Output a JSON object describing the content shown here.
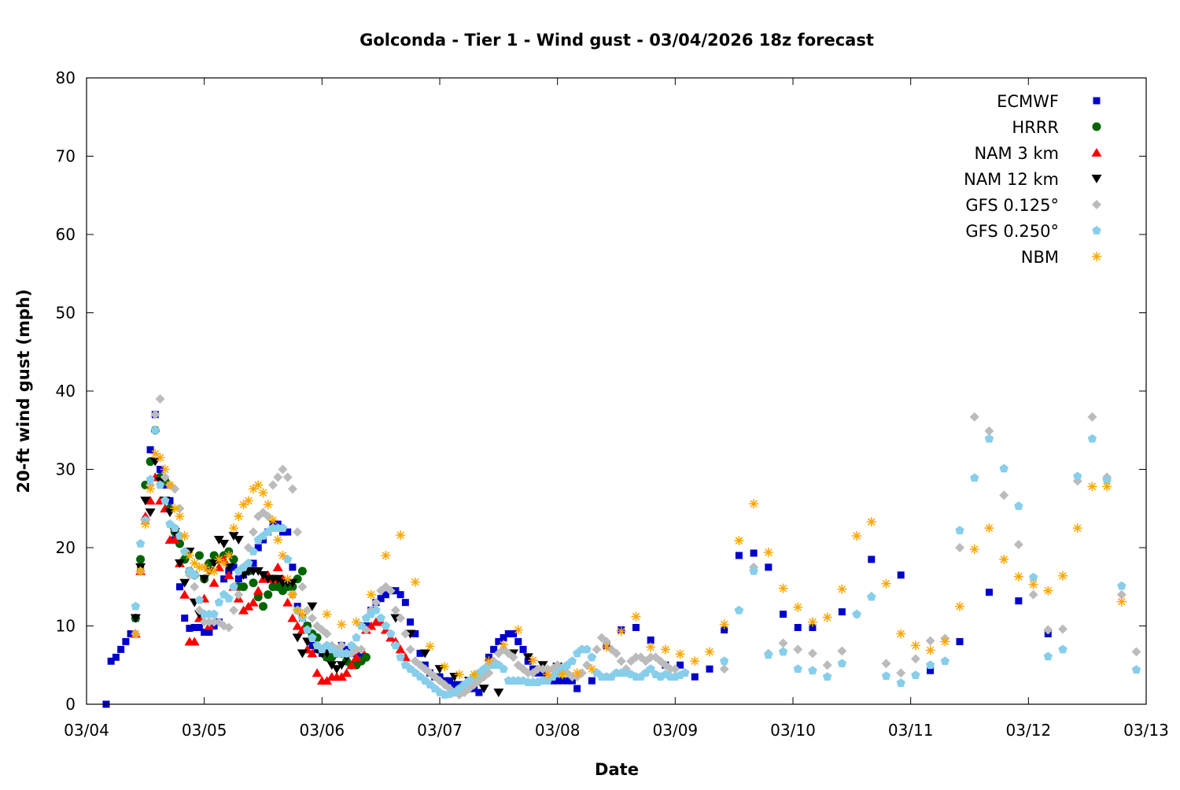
{
  "chart_data": {
    "type": "scatter",
    "title": "Golconda - Tier 1 - Wind gust - 03/04/2026 18z forecast",
    "xlabel": "Date",
    "ylabel": "20-ft wind gust (mph)",
    "x_units": "hours since 03/04 00z",
    "xlim": [
      0,
      216
    ],
    "ylim": [
      0,
      80
    ],
    "yticks": [
      0,
      10,
      20,
      30,
      40,
      50,
      60,
      70,
      80
    ],
    "xticks": [
      {
        "hour": 0,
        "label": "03/04"
      },
      {
        "hour": 24,
        "label": "03/05"
      },
      {
        "hour": 48,
        "label": "03/06"
      },
      {
        "hour": 72,
        "label": "03/07"
      },
      {
        "hour": 96,
        "label": "03/08"
      },
      {
        "hour": 120,
        "label": "03/09"
      },
      {
        "hour": 144,
        "label": "03/10"
      },
      {
        "hour": 168,
        "label": "03/11"
      },
      {
        "hour": 192,
        "label": "03/12"
      },
      {
        "hour": 216,
        "label": "03/13"
      }
    ],
    "grid": false,
    "legend_position": "top-right",
    "series": [
      {
        "name": "ECMWF",
        "marker": "square",
        "color": "#0000cc",
        "segments": [
          {
            "start": 4,
            "step": 1,
            "values": [
              0,
              5.5,
              6,
              7,
              8,
              9,
              11,
              17.5,
              23.5,
              32.5,
              37,
              30,
              28,
              26,
              21,
              15,
              11,
              9.7,
              9.8,
              9.8,
              9.2,
              9.2,
              10,
              10.5,
              16,
              17,
              17.5,
              16,
              16.5,
              17,
              18,
              20,
              21,
              22,
              23,
              23,
              22,
              22,
              17.5,
              12.5,
              11,
              10,
              7.5,
              7,
              6.5,
              6,
              6.5,
              7,
              7.5,
              7,
              6.5,
              6.5,
              6.5,
              10,
              12,
              13,
              13.5,
              14,
              14.5,
              14.5,
              14,
              13,
              10.5,
              9,
              6.5,
              5,
              4,
              3.5,
              3.5,
              3,
              3,
              2.5,
              2.5,
              2,
              2,
              2,
              1.5,
              4,
              6,
              7,
              8,
              8.5,
              9,
              9,
              8,
              7,
              5.5,
              4.5,
              4,
              4,
              3,
              3,
              3,
              3,
              3,
              3
            ]
          },
          {
            "start": 100,
            "step": 3,
            "values": [
              2,
              3,
              7.5,
              9.5,
              9.8,
              8.2,
              5,
              5,
              3.5,
              4.5,
              9.5,
              19,
              19.3,
              17.5,
              11.5,
              9.8,
              9.8
            ]
          },
          {
            "start": 154,
            "step": 6,
            "values": [
              11.8,
              18.5,
              16.5,
              4.3,
              8,
              14.3,
              13.2,
              9
            ]
          }
        ]
      },
      {
        "name": "HRRR",
        "marker": "circle",
        "color": "#006400",
        "segments": [
          {
            "start": 10,
            "step": 1,
            "values": [
              11,
              18.5,
              28,
              31,
              35,
              29,
              28.5,
              25,
              22,
              20.5,
              18.5,
              17,
              16.5,
              19,
              16,
              18,
              19,
              18.5,
              19,
              19.5,
              18.5,
              15,
              15,
              17,
              15.5,
              13.7,
              12.5,
              14,
              15,
              15,
              14.5,
              15,
              15,
              16,
              17,
              10,
              9,
              8.5,
              7,
              6,
              6,
              6.5,
              6.5,
              5.5,
              5,
              5,
              5.5,
              6
            ]
          }
        ]
      },
      {
        "name": "NAM 3 km",
        "marker": "triangle-up",
        "color": "#ff0000",
        "segments": [
          {
            "start": 10,
            "step": 1,
            "values": [
              9,
              17,
              24,
              26,
              29,
              26,
              25,
              21,
              21,
              18,
              14,
              8,
              8,
              11,
              13.5,
              10,
              15.5,
              17.5,
              18.5,
              16.5,
              15,
              13.5,
              12,
              12.5,
              13,
              14.5,
              16,
              16.5,
              16,
              17.5,
              16,
              13,
              11,
              10,
              9.5,
              7,
              6.5,
              4,
              3,
              3,
              3.5,
              3.5,
              3.5,
              4,
              5,
              6,
              7,
              9.5,
              10,
              10.5,
              10.5,
              9.5,
              8.5,
              8,
              7,
              6
            ]
          }
        ]
      },
      {
        "name": "NAM 12 km",
        "marker": "triangle-down",
        "color": "#000000",
        "segments": [
          {
            "start": 10,
            "step": 1,
            "values": [
              11,
              17.5,
              26,
              24.5,
              31,
              28.5,
              26,
              24.5,
              22,
              18,
              15.5,
              19.5,
              13,
              11.5,
              16,
              17,
              18,
              21,
              20.5,
              17.5,
              21.5,
              21,
              16.5,
              17,
              17,
              17,
              16.5,
              16,
              16,
              16,
              15.5,
              15.5,
              15.5,
              8.5,
              6.5,
              8,
              12.5,
              7,
              6.5,
              6.5,
              5,
              4.5,
              5,
              6
            ]
          },
          {
            "start": 63,
            "step": 3,
            "values": [
              11,
              9,
              6.5,
              4.5,
              3.5,
              3,
              2,
              1.5,
              6.5,
              6,
              5,
              4.8
            ]
          }
        ]
      },
      {
        "name": "GFS 0.125°",
        "marker": "diamond",
        "color": "#bbbbbb",
        "segments": [
          {
            "start": 10,
            "step": 1,
            "values": [
              9,
              17,
              23.5,
              28,
              37,
              39,
              29,
              28,
              27.5,
              25,
              19.5,
              16.5,
              15,
              12,
              10.5,
              10.5,
              10.5,
              10.5,
              10,
              9.8,
              12,
              14,
              17.5,
              20,
              22,
              24,
              24.5,
              24,
              28,
              29,
              30,
              29,
              27.5,
              22,
              15,
              12,
              11,
              10,
              9.5,
              9,
              7.5,
              7,
              7.5,
              6.5,
              6.5,
              7,
              7,
              9.5,
              12,
              13,
              14.5,
              15,
              14.5,
              12,
              11,
              9,
              7,
              5.5,
              5,
              4.5,
              4,
              3.5,
              3,
              2.5,
              2,
              1.5,
              1.2,
              1.5,
              2,
              2.5,
              3,
              3.5,
              4,
              5.5,
              6.5,
              7,
              6.5,
              6,
              5,
              4.5,
              4,
              4,
              4.5,
              4.5,
              4.5,
              4.5,
              5,
              4.5,
              4,
              3.5,
              3.5,
              4,
              5,
              6,
              7,
              8.5,
              8,
              7,
              6.5,
              5.5,
              4.5,
              5.5,
              6,
              6,
              5.5,
              6,
              6,
              5.5,
              5,
              4.5,
              4.5
            ]
          },
          {
            "start": 130,
            "step": 3,
            "values": [
              4.5,
              12,
              17.5,
              6.5,
              7.8,
              7,
              6.5,
              5,
              6.8,
              11.5,
              13.8,
              5.2,
              4,
              5.8,
              8.1,
              8.4,
              20,
              36.7,
              34.9,
              26.7,
              20.4,
              14,
              9.5,
              9.6,
              28.5,
              36.7,
              29,
              14,
              6.7
            ]
          }
        ]
      },
      {
        "name": "GFS 0.250°",
        "marker": "pentagon",
        "color": "#87ceeb",
        "segments": [
          {
            "start": 10,
            "step": 1,
            "values": [
              12.5,
              20.5,
              23.5,
              28.7,
              35,
              28,
              26,
              23,
              22.5,
              21.5,
              19.5,
              17,
              16.5,
              13.3,
              11.5,
              11.5,
              11.5,
              13,
              14,
              13.5,
              15,
              17,
              17.5,
              18,
              19.5,
              21,
              21.5,
              22,
              22.5,
              22.5,
              22.5,
              18.5,
              14,
              12,
              11,
              9.5,
              8.5,
              7.5,
              7,
              7.5,
              7,
              6.5,
              6.5,
              6.5,
              7.5,
              8.5,
              10,
              11,
              11.5,
              12,
              11,
              10,
              9,
              7.5,
              6,
              5,
              4.5,
              4,
              3.5,
              3,
              2.5,
              2,
              1.5,
              1.2,
              1.3,
              1.5,
              2,
              2.5,
              3,
              3.5,
              4,
              4.5,
              5,
              5,
              5,
              4.5,
              3,
              3,
              3,
              3,
              2.8,
              2.8,
              2.8,
              3,
              3,
              3.5,
              4,
              4.5,
              5,
              5.5,
              6.5,
              7,
              7,
              6,
              4,
              3.5,
              3.5,
              3.5,
              4,
              4,
              4,
              3.8,
              3.5,
              3.5,
              4,
              4.5,
              3.8,
              3.5,
              3.8,
              3.5,
              3.5,
              3.7,
              4
            ]
          },
          {
            "start": 130,
            "step": 3,
            "values": [
              5.5,
              12,
              17,
              6.3,
              6.7,
              4.5,
              4.3,
              3.5,
              5.2,
              11.5,
              13.7,
              3.6,
              2.7,
              3.7,
              5,
              5.5,
              22.2,
              28.9,
              33.9,
              30.1,
              25.3,
              16.2,
              6.1,
              7,
              29.1,
              33.9,
              28.6,
              15.1,
              4.4
            ]
          }
        ]
      },
      {
        "name": "NBM",
        "marker": "asterisk",
        "color": "#ffa500",
        "segments": [
          {
            "start": 10,
            "step": 1,
            "values": [
              9,
              17,
              23,
              27.5,
              32,
              31.5,
              30,
              28,
              25,
              24,
              21.5,
              19,
              18,
              17.5,
              17.5,
              17,
              17,
              18.5,
              18,
              19,
              22.5,
              24,
              25.5,
              26,
              27.5,
              28,
              27,
              25.5,
              23.5,
              21,
              19,
              16,
              14,
              12,
              11.5
            ]
          },
          {
            "start": 49,
            "step": 3,
            "values": [
              11.5,
              10.2,
              10.5,
              14,
              19,
              21.6,
              15.6,
              7.4,
              4.8,
              3.8,
              3.8,
              5.5,
              7.6,
              9.5,
              5.6,
              3.8,
              3.8,
              4,
              4.5,
              7.3,
              9.3,
              11.2,
              7.3,
              7,
              6.4,
              5.5,
              6.7,
              10.2,
              20.9,
              25.6,
              19.4,
              14.8,
              12.4,
              10.5,
              11.1,
              14.7,
              21.5,
              23.3,
              15.4,
              9,
              7.5,
              6.9,
              8,
              12.5,
              19.8,
              22.5,
              18.5,
              16.3,
              15.3,
              14.5,
              16.4,
              22.5,
              27.8,
              27.8,
              13.1
            ]
          }
        ]
      }
    ]
  }
}
